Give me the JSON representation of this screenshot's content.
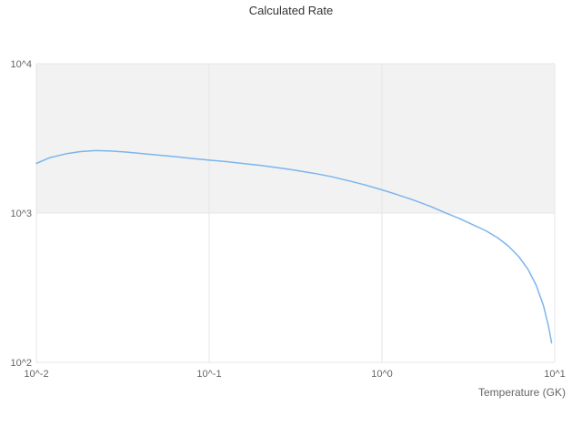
{
  "chart_data": {
    "type": "line",
    "title": "Calculated Rate",
    "xlabel": "Temperature (GK)",
    "ylabel": "",
    "xscale": "log",
    "yscale": "log",
    "xlim": [
      0.01,
      10
    ],
    "ylim": [
      100,
      10000
    ],
    "grid": true,
    "legend": "none",
    "x_ticks": [
      {
        "value": 0.01,
        "label": "10^-2"
      },
      {
        "value": 0.1,
        "label": "10^-1"
      },
      {
        "value": 1,
        "label": "10^0"
      },
      {
        "value": 10,
        "label": "10^1"
      }
    ],
    "y_ticks": [
      {
        "value": 100,
        "label": "10^2"
      },
      {
        "value": 1000,
        "label": "10^3"
      },
      {
        "value": 10000,
        "label": "10^4"
      }
    ],
    "band": {
      "from": 1000,
      "to": 10000,
      "color": "#f2f2f2"
    },
    "colors": {
      "line": "#7cb5ec",
      "grid": "#e6e6e6",
      "title": "#333333",
      "tick": "#666666",
      "background": "#ffffff"
    },
    "series": [
      {
        "name": "Calculated Rate",
        "x": [
          0.01,
          0.012,
          0.015,
          0.018,
          0.022,
          0.027,
          0.033,
          0.04,
          0.05,
          0.065,
          0.08,
          0.1,
          0.13,
          0.16,
          0.2,
          0.25,
          0.3,
          0.4,
          0.5,
          0.65,
          0.8,
          1.0,
          1.2,
          1.5,
          1.9,
          2.3,
          2.8,
          3.4,
          4.0,
          4.7,
          5.4,
          6.2,
          7.0,
          7.8,
          8.6,
          9.2,
          9.6
        ],
        "y": [
          2150,
          2350,
          2500,
          2580,
          2620,
          2600,
          2560,
          2510,
          2450,
          2380,
          2320,
          2260,
          2200,
          2140,
          2080,
          2010,
          1950,
          1850,
          1760,
          1640,
          1540,
          1430,
          1340,
          1230,
          1110,
          1010,
          920,
          830,
          760,
          680,
          600,
          510,
          420,
          330,
          240,
          175,
          135
        ]
      }
    ]
  }
}
